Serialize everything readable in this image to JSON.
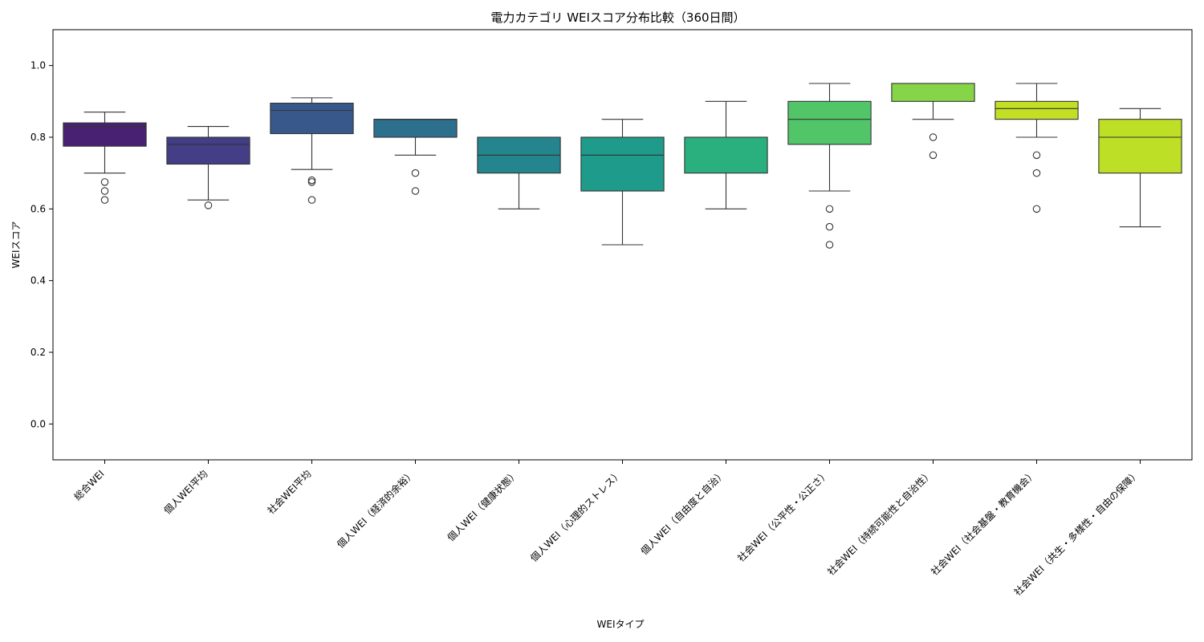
{
  "chart_data": {
    "type": "box",
    "title": "電力カテゴリ WEIスコア分布比較（360日間）",
    "xlabel": "WEIタイプ",
    "ylabel": "WEIスコア",
    "ylim": [
      -0.1,
      1.1
    ],
    "yticks": [
      "0.0",
      "0.2",
      "0.4",
      "0.6",
      "0.8",
      "1.0"
    ],
    "grid": false,
    "categories": [
      "総合WEI",
      "個人WEI平均",
      "社会WEI平均",
      "個人WEI（経済的余裕）",
      "個人WEI（健康状態）",
      "個人WEI（心理的ストレス）",
      "個人WEI（自由度と自治）",
      "社会WEI（公平性・公正さ）",
      "社会WEI（持続可能性と自治性）",
      "社会WEI（社会基盤・教育機会）",
      "社会WEI（共生・多様性・自由の保障）"
    ],
    "colors": [
      "#482173",
      "#433e85",
      "#38588c",
      "#2d708e",
      "#25858e",
      "#1e9b8a",
      "#2ab07f",
      "#52c569",
      "#86d549",
      "#c2df23",
      "#bddf26"
    ],
    "boxes": [
      {
        "q1": 0.775,
        "median": 0.83,
        "q3": 0.84,
        "whislo": 0.7,
        "whishi": 0.87,
        "fliers": [
          0.675,
          0.65,
          0.625
        ]
      },
      {
        "q1": 0.725,
        "median": 0.78,
        "q3": 0.8,
        "whislo": 0.625,
        "whishi": 0.83,
        "fliers": [
          0.61
        ]
      },
      {
        "q1": 0.81,
        "median": 0.875,
        "q3": 0.895,
        "whislo": 0.71,
        "whishi": 0.91,
        "fliers": [
          0.68,
          0.675,
          0.625
        ]
      },
      {
        "q1": 0.8,
        "median": 0.85,
        "q3": 0.85,
        "whislo": 0.75,
        "whishi": 0.85,
        "fliers": [
          0.7,
          0.65
        ]
      },
      {
        "q1": 0.7,
        "median": 0.75,
        "q3": 0.8,
        "whislo": 0.6,
        "whishi": 0.8,
        "fliers": []
      },
      {
        "q1": 0.65,
        "median": 0.75,
        "q3": 0.8,
        "whislo": 0.5,
        "whishi": 0.85,
        "fliers": []
      },
      {
        "q1": 0.7,
        "median": 0.8,
        "q3": 0.8,
        "whislo": 0.6,
        "whishi": 0.9,
        "fliers": []
      },
      {
        "q1": 0.78,
        "median": 0.85,
        "q3": 0.9,
        "whislo": 0.65,
        "whishi": 0.95,
        "fliers": [
          0.6,
          0.55,
          0.5
        ]
      },
      {
        "q1": 0.9,
        "median": 0.95,
        "q3": 0.95,
        "whislo": 0.85,
        "whishi": 0.95,
        "fliers": [
          0.8,
          0.75
        ]
      },
      {
        "q1": 0.85,
        "median": 0.88,
        "q3": 0.9,
        "whislo": 0.8,
        "whishi": 0.95,
        "fliers": [
          0.75,
          0.7,
          0.6
        ]
      },
      {
        "q1": 0.7,
        "median": 0.8,
        "q3": 0.85,
        "whislo": 0.55,
        "whishi": 0.88,
        "fliers": []
      }
    ]
  }
}
